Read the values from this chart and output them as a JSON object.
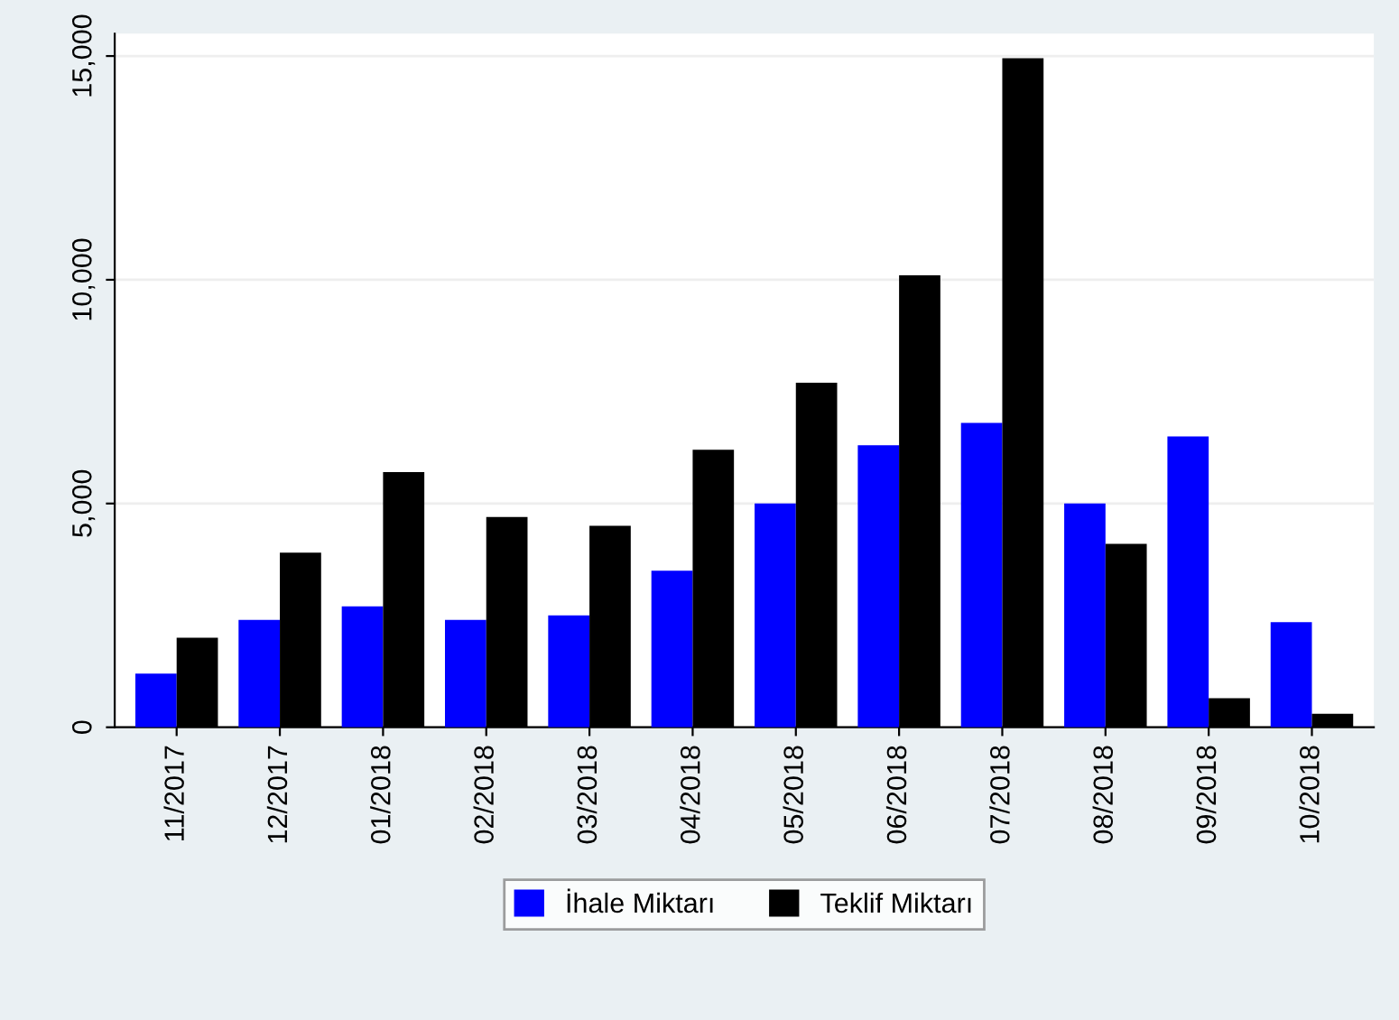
{
  "chart_data": {
    "type": "bar",
    "categories": [
      "11/2017",
      "12/2017",
      "01/2018",
      "02/2018",
      "03/2018",
      "04/2018",
      "05/2018",
      "06/2018",
      "07/2018",
      "08/2018",
      "09/2018",
      "10/2018"
    ],
    "series": [
      {
        "name": "İhale Miktarı",
        "color": "#0000ff",
        "values": [
          1200,
          2400,
          2700,
          2400,
          2500,
          3500,
          5000,
          6300,
          6800,
          5000,
          6500,
          2350
        ]
      },
      {
        "name": "Teklif Miktarı",
        "color": "#000000",
        "values": [
          2000,
          3900,
          5700,
          4700,
          4500,
          6200,
          7700,
          10100,
          14950,
          4100,
          650,
          300
        ]
      }
    ],
    "ylim": [
      0,
      15500
    ],
    "yticks": [
      {
        "value": 0,
        "label": "0"
      },
      {
        "value": 5000,
        "label": "5,000"
      },
      {
        "value": 10000,
        "label": "10,000"
      },
      {
        "value": 15000,
        "label": "15,000"
      }
    ],
    "grid": "y",
    "legend": "bottom"
  }
}
